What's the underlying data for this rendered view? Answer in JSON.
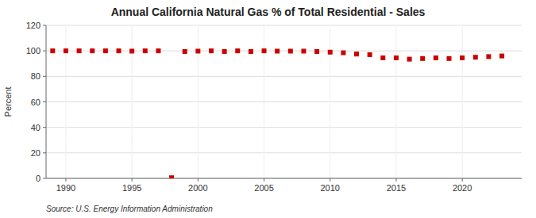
{
  "chart_data": {
    "type": "scatter",
    "title": "Annual California Natural Gas % of Total Residential - Sales",
    "y_label": "Percent",
    "annotations": [
      "Source: U.S. Energy Information Administration"
    ],
    "x": [
      1989,
      1990,
      1991,
      1992,
      1993,
      1994,
      1995,
      1996,
      1997,
      1998,
      1999,
      2000,
      2001,
      2002,
      2003,
      2004,
      2005,
      2006,
      2007,
      2008,
      2009,
      2010,
      2011,
      2012,
      2013,
      2014,
      2015,
      2016,
      2017,
      2018,
      2019,
      2020,
      2021,
      2022,
      2023
    ],
    "values": [
      100.0,
      100.0,
      100.0,
      100.0,
      100.0,
      100.0,
      99.8,
      100.0,
      100.0,
      0.5,
      99.5,
      99.8,
      100.0,
      99.5,
      100.0,
      99.5,
      100.0,
      99.8,
      99.8,
      99.8,
      99.5,
      99.0,
      98.5,
      97.5,
      97.0,
      94.5,
      94.5,
      93.5,
      94.0,
      94.5,
      94.0,
      94.5,
      95.0,
      95.5,
      96.0
    ],
    "color": "#cc0000",
    "marker": "square",
    "xlim": [
      1988.5,
      2024.5
    ],
    "xticks": [
      1990,
      1995,
      2000,
      2005,
      2010,
      2015,
      2020
    ],
    "ylim": [
      0,
      120
    ],
    "yticks": [
      0,
      20,
      40,
      60,
      80,
      100,
      120
    ],
    "grid": true
  }
}
